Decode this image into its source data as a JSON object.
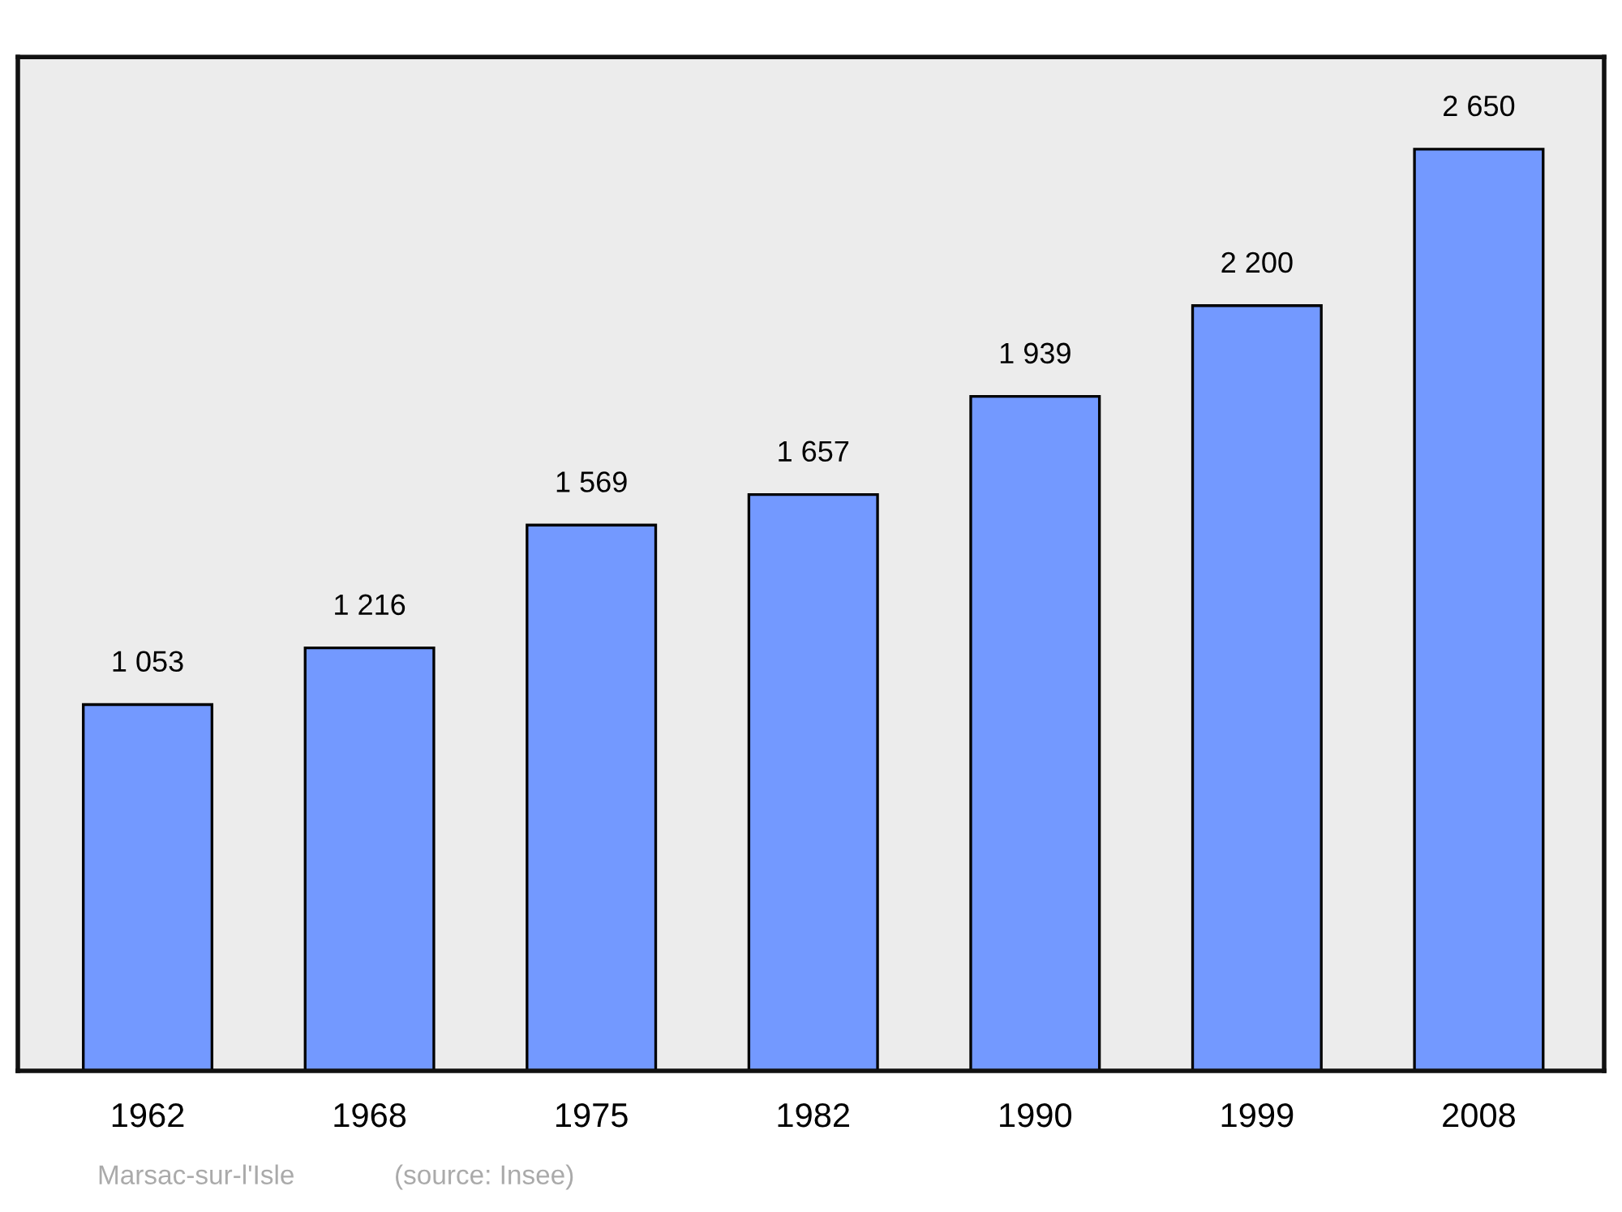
{
  "chart_data": {
    "type": "bar",
    "categories": [
      "1962",
      "1968",
      "1975",
      "1982",
      "1990",
      "1999",
      "2008"
    ],
    "values": [
      1053,
      1216,
      1569,
      1657,
      1939,
      2200,
      2650
    ],
    "value_labels": [
      "1 053",
      "1 216",
      "1 569",
      "1 657",
      "1 939",
      "2 200",
      "2 650"
    ],
    "color": "#7399ff",
    "tick_labels": "x",
    "grid": false,
    "annotations": [
      "Marsac-sur-l'Isle",
      "(source: Insee)"
    ]
  }
}
